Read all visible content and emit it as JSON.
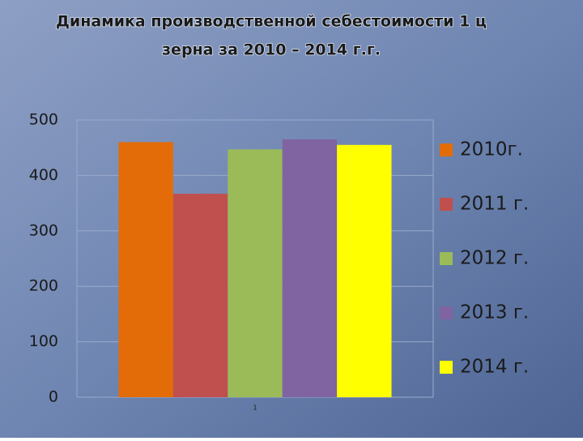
{
  "chart_data": {
    "type": "bar",
    "title": [
      "Динамика производственной себестоимости 1 ц",
      "зерна за 2010 – 2014 г.г."
    ],
    "categories": [
      "1"
    ],
    "series": [
      {
        "name": "2010г.",
        "color": "#e36c09",
        "values": [
          460
        ]
      },
      {
        "name": "2011 г.",
        "color": "#c0504d",
        "values": [
          367
        ]
      },
      {
        "name": "2012 г.",
        "color": "#9bbb59",
        "values": [
          447
        ]
      },
      {
        "name": "2013 г.",
        "color": "#8064a2",
        "values": [
          465
        ]
      },
      {
        "name": "2014 г.",
        "color": "#ffff00",
        "values": [
          455
        ]
      }
    ],
    "ylim": [
      0,
      500
    ],
    "yticks": [
      0,
      100,
      200,
      300,
      400,
      500
    ],
    "grid": true,
    "legend": "right"
  }
}
